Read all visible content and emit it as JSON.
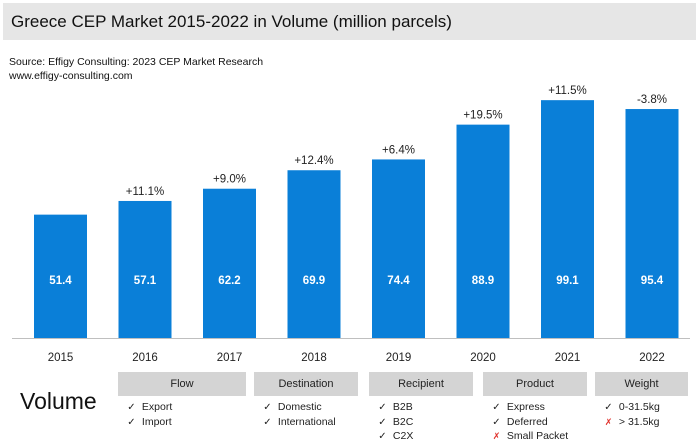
{
  "title": "Greece CEP Market 2015-2022 in Volume (million parcels)",
  "source": "Source: Effigy Consulting: 2023 CEP Market Research",
  "website": "www.effigy-consulting.com",
  "chart_data": {
    "type": "bar",
    "title": "Greece CEP Market 2015-2022 in Volume (million parcels)",
    "categories": [
      "2015",
      "2016",
      "2017",
      "2018",
      "2019",
      "2020",
      "2021",
      "2022"
    ],
    "values": [
      51.4,
      57.1,
      62.2,
      69.9,
      74.4,
      88.9,
      99.1,
      95.4
    ],
    "value_labels": [
      "51.4",
      "57.1",
      "62.2",
      "69.9",
      "74.4",
      "88.9",
      "99.1",
      "95.4"
    ],
    "growth_labels": [
      "",
      "+11.1%",
      "+9.0%",
      "+12.4%",
      "+6.4%",
      "+19.5%",
      "+11.5%",
      "-3.8%"
    ],
    "xlabel": "",
    "ylabel": "",
    "ylim": [
      0,
      100
    ],
    "bar_color": "#0a7fd8",
    "grid": false
  },
  "volume_label": "Volume",
  "categories_table": [
    {
      "header": "Flow",
      "items": [
        {
          "mark": "check",
          "text": "Export"
        },
        {
          "mark": "check",
          "text": "Import"
        }
      ]
    },
    {
      "header": "Destination",
      "items": [
        {
          "mark": "check",
          "text": "Domestic"
        },
        {
          "mark": "check",
          "text": "International"
        }
      ]
    },
    {
      "header": "Recipient",
      "items": [
        {
          "mark": "check",
          "text": "B2B"
        },
        {
          "mark": "check",
          "text": "B2C"
        },
        {
          "mark": "check",
          "text": "C2X"
        }
      ]
    },
    {
      "header": "Product",
      "items": [
        {
          "mark": "check",
          "text": "Express"
        },
        {
          "mark": "check",
          "text": "Deferred"
        },
        {
          "mark": "cross",
          "text": "Small Packet"
        }
      ]
    },
    {
      "header": "Weight",
      "items": [
        {
          "mark": "check",
          "text": "0-31.5kg"
        },
        {
          "mark": "cross",
          "text": "> 31.5kg"
        }
      ]
    }
  ],
  "marks": {
    "check": "✓",
    "cross": "✗"
  }
}
